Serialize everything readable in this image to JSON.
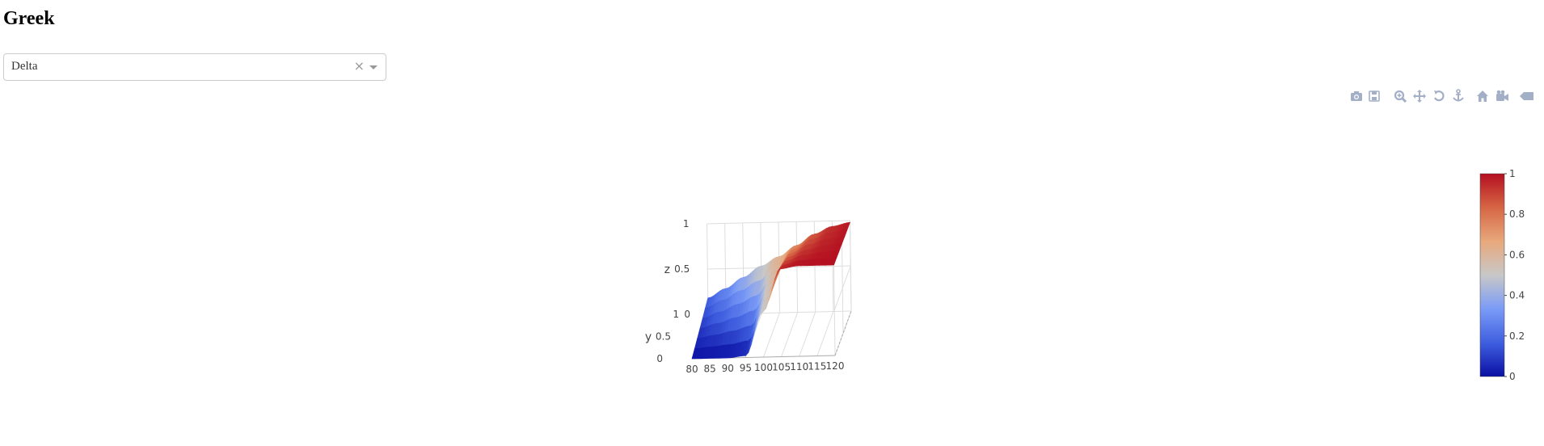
{
  "header": {
    "title": "Greek"
  },
  "selector": {
    "value": "Delta",
    "clear_glyph": "×"
  },
  "modebar": {
    "buttons": [
      "camera-icon",
      "save-icon",
      "zoom-icon",
      "pan-icon",
      "orbit-icon",
      "turntable-icon",
      "home-icon",
      "reset-camera-icon",
      "hover-icon",
      "plotly-logo-icon"
    ],
    "icon_color": "#a3afc6",
    "logo_color": "#447adb"
  },
  "chart_data": {
    "type": "surface",
    "title": "",
    "xlabel": "",
    "ylabel": "y",
    "zlabel": "z",
    "x_ticks": [
      "80",
      "85",
      "90",
      "95",
      "100",
      "105",
      "110",
      "115",
      "120"
    ],
    "y_ticks": [
      "0",
      "0.5",
      "1"
    ],
    "z_ticks": [
      "0",
      "0.5",
      "1"
    ],
    "xlim": [
      80,
      120
    ],
    "ylim": [
      0,
      1
    ],
    "zlim": [
      0,
      1
    ],
    "colorscale": [
      "#0a0fa3",
      "#3f5fe0",
      "#7b9bf7",
      "#c8c8c8",
      "#e8a87c",
      "#d66645",
      "#b40f20"
    ],
    "colorbar": {
      "ticks": [
        "0",
        "0.2",
        "0.4",
        "0.6",
        "0.8",
        "1"
      ]
    },
    "surface": {
      "x": [
        80,
        85,
        90,
        95,
        100,
        105,
        110,
        115,
        120
      ],
      "z_near_expiry": [
        0.0,
        0.0,
        0.0,
        0.02,
        0.5,
        0.97,
        1.0,
        1.0,
        1.0
      ],
      "z_far_expiry": [
        0.18,
        0.28,
        0.4,
        0.52,
        0.62,
        0.74,
        0.86,
        0.94,
        0.98
      ]
    }
  }
}
